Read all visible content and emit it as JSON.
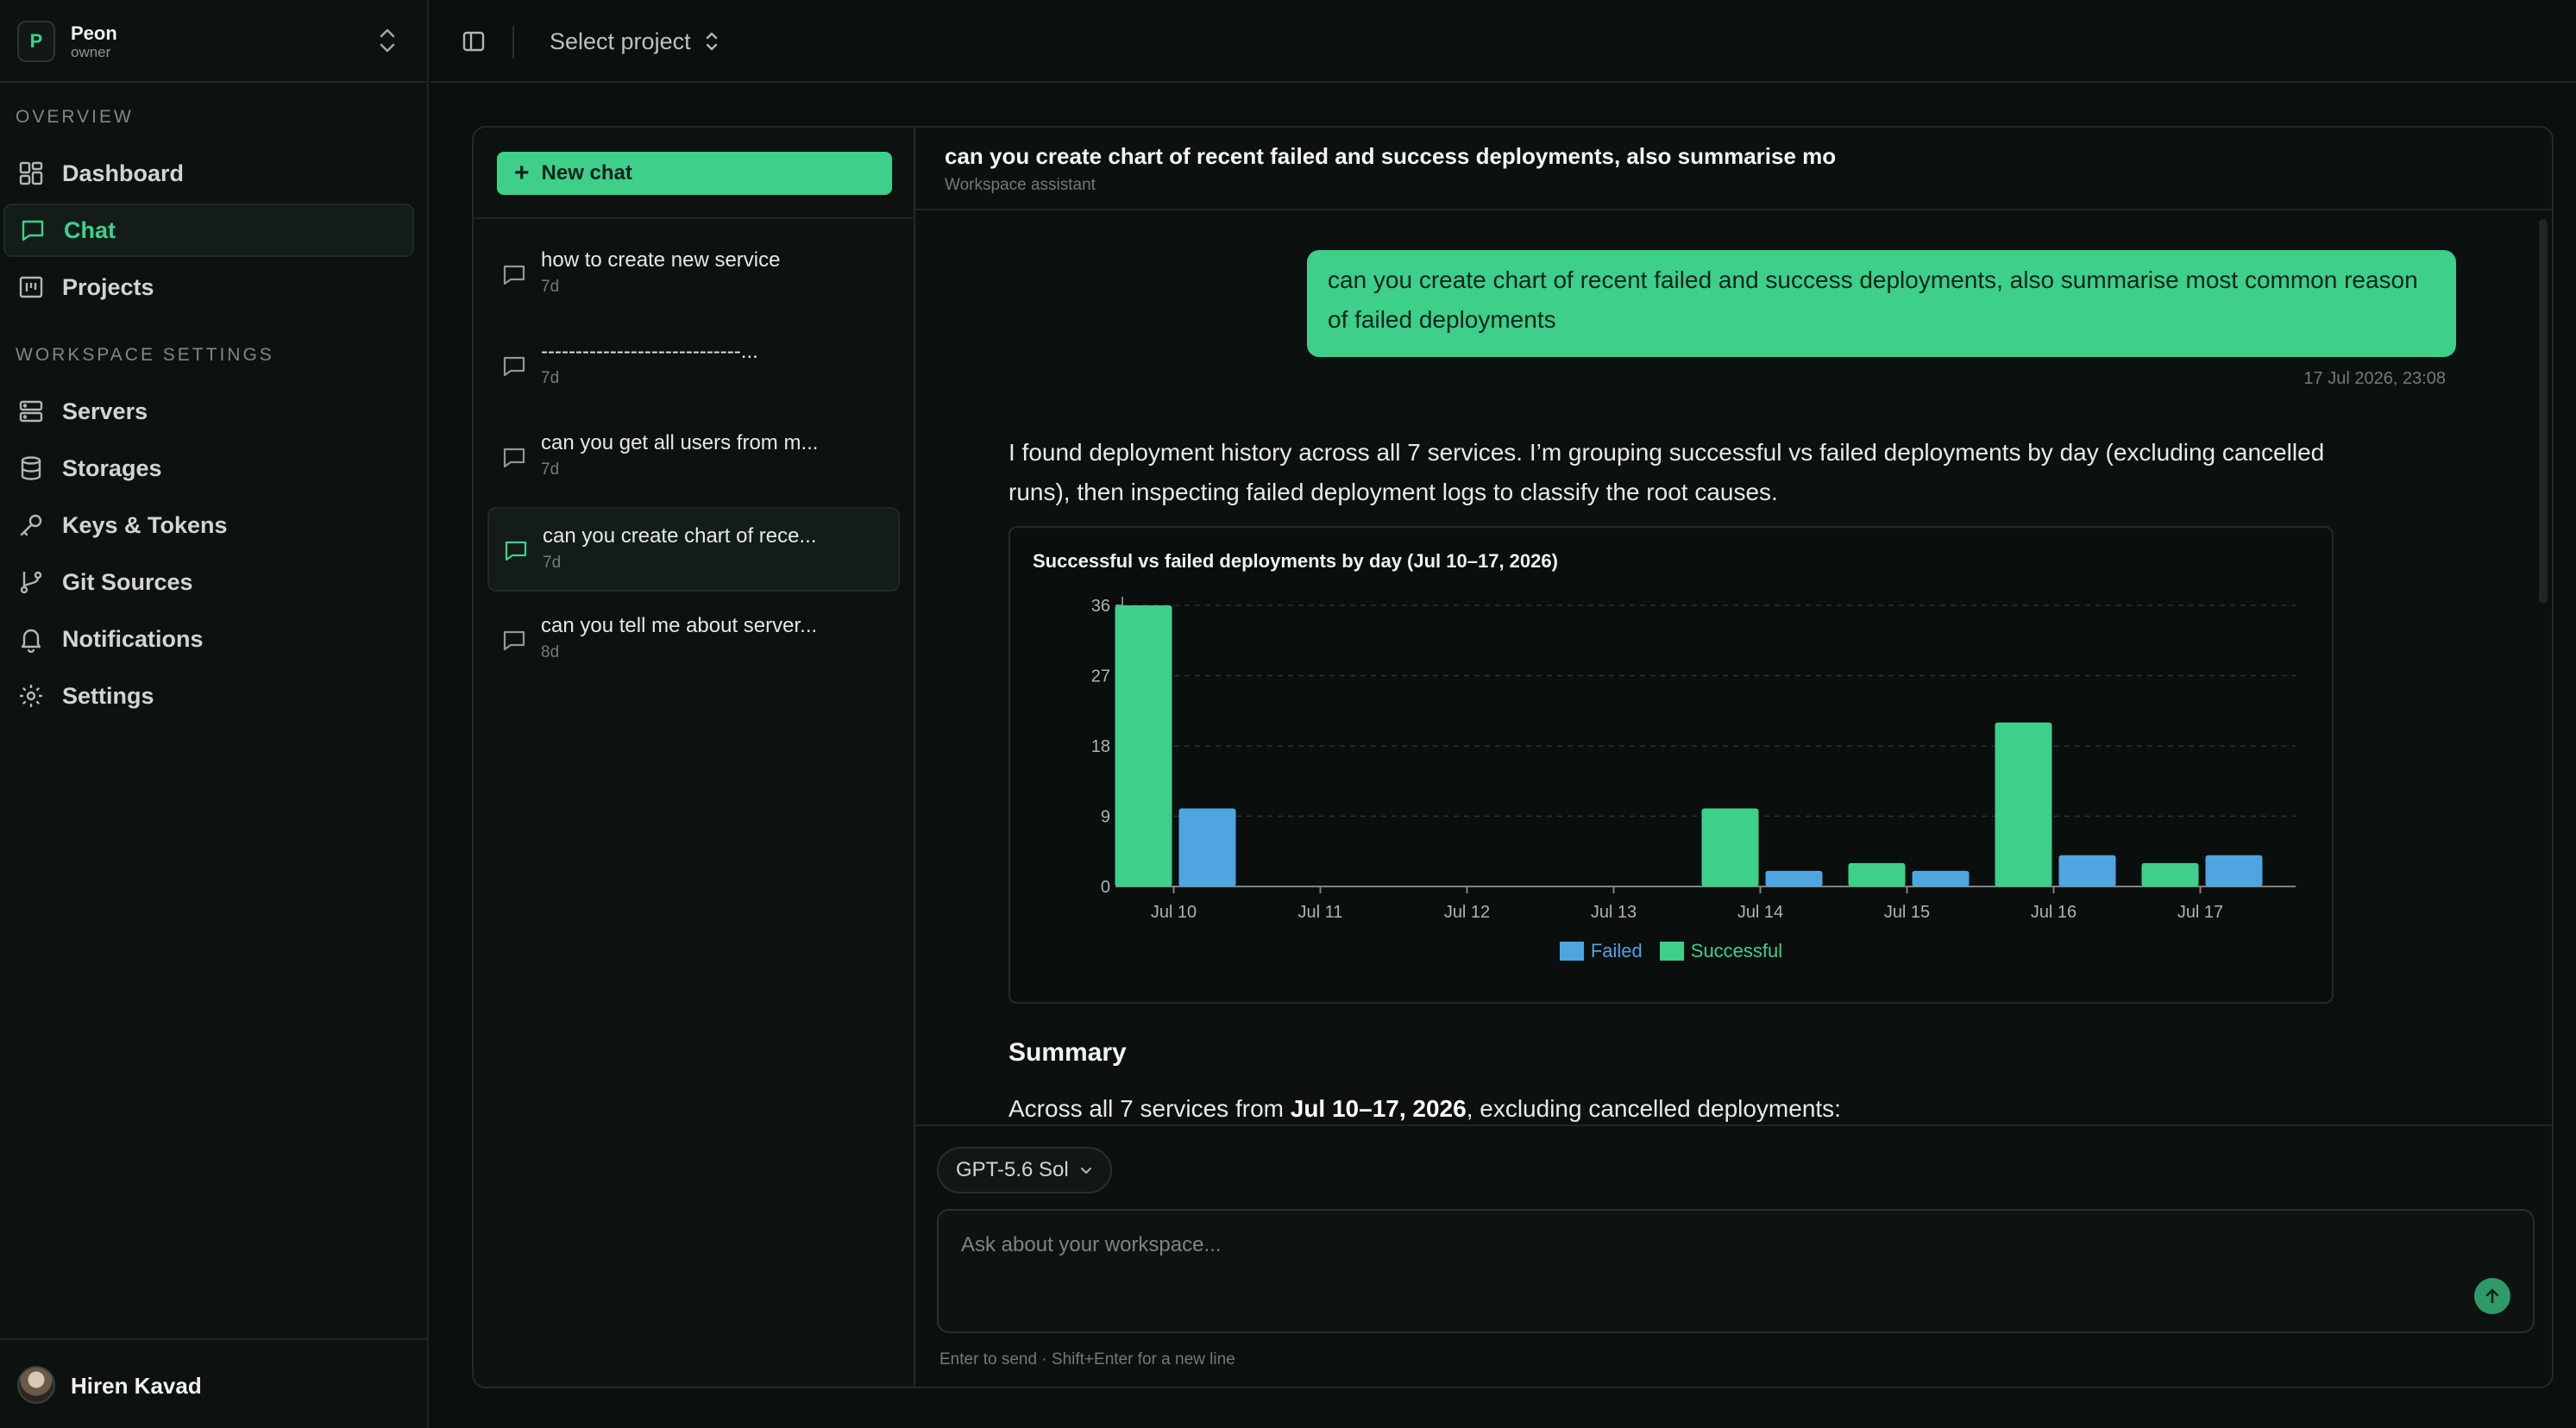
{
  "workspace": {
    "initial": "P",
    "name": "Peon",
    "role": "owner"
  },
  "sidebar": {
    "overview_label": "OVERVIEW",
    "overview_items": [
      {
        "label": "Dashboard",
        "icon": "dashboard-icon"
      },
      {
        "label": "Chat",
        "icon": "chat-icon",
        "active": true
      },
      {
        "label": "Projects",
        "icon": "projects-icon"
      }
    ],
    "settings_label": "WORKSPACE SETTINGS",
    "settings_items": [
      {
        "label": "Servers",
        "icon": "server-icon"
      },
      {
        "label": "Storages",
        "icon": "database-icon"
      },
      {
        "label": "Keys & Tokens",
        "icon": "key-icon"
      },
      {
        "label": "Git Sources",
        "icon": "git-branch-icon"
      },
      {
        "label": "Notifications",
        "icon": "bell-icon"
      },
      {
        "label": "Settings",
        "icon": "gear-icon"
      }
    ],
    "user": {
      "name": "Hiren Kavad"
    }
  },
  "topbar": {
    "project_select": "Select project"
  },
  "chat_list": {
    "new_chat_label": "New chat",
    "items": [
      {
        "title": "how to create new service",
        "age": "7d"
      },
      {
        "title": "-----------------------------...",
        "age": "7d"
      },
      {
        "title": "can you get all users from m...",
        "age": "7d"
      },
      {
        "title": "can you create chart of rece...",
        "age": "7d",
        "active": true
      },
      {
        "title": "can you tell me about server...",
        "age": "8d"
      }
    ]
  },
  "conversation": {
    "title": "can you create chart of recent failed and success deployments, also summarise mo",
    "subtitle": "Workspace assistant",
    "user_message": "can you create chart of recent failed and success deployments, also summarise most common reason of failed deployments",
    "user_message_time": "17 Jul 2026, 23:08",
    "assistant_text": "I found deployment history across all 7 services. I’m grouping successful vs failed deployments by day (excluding cancelled runs), then inspecting failed deployment logs to classify the root causes.",
    "summary_heading": "Summary",
    "summary_prefix": "Across all 7 services from ",
    "summary_bold": "Jul 10–17, 2026",
    "summary_suffix": ", excluding cancelled deployments:"
  },
  "composer": {
    "model": "GPT-5.6 Sol",
    "placeholder": "Ask about your workspace...",
    "hint": "Enter to send · Shift+Enter for a new line"
  },
  "colors": {
    "accent": "#3ecf8a",
    "failed": "#4ea5e0",
    "successful": "#3ecf8a"
  },
  "chart_data": {
    "type": "bar",
    "title": "Successful vs failed deployments by day (Jul 10–17, 2026)",
    "categories": [
      "Jul 10",
      "Jul 11",
      "Jul 12",
      "Jul 13",
      "Jul 14",
      "Jul 15",
      "Jul 16",
      "Jul 17"
    ],
    "series": [
      {
        "name": "Successful",
        "color": "#3ecf8a",
        "values": [
          36,
          0,
          0,
          0,
          10,
          3,
          21,
          3
        ]
      },
      {
        "name": "Failed",
        "color": "#4ea5e0",
        "values": [
          10,
          0,
          0,
          0,
          2,
          2,
          4,
          4
        ]
      }
    ],
    "yticks": [
      0,
      9,
      18,
      27,
      36
    ],
    "ylim": [
      0,
      36
    ],
    "grid": true,
    "legend": "bottom",
    "legend_order": [
      "Failed",
      "Successful"
    ]
  }
}
